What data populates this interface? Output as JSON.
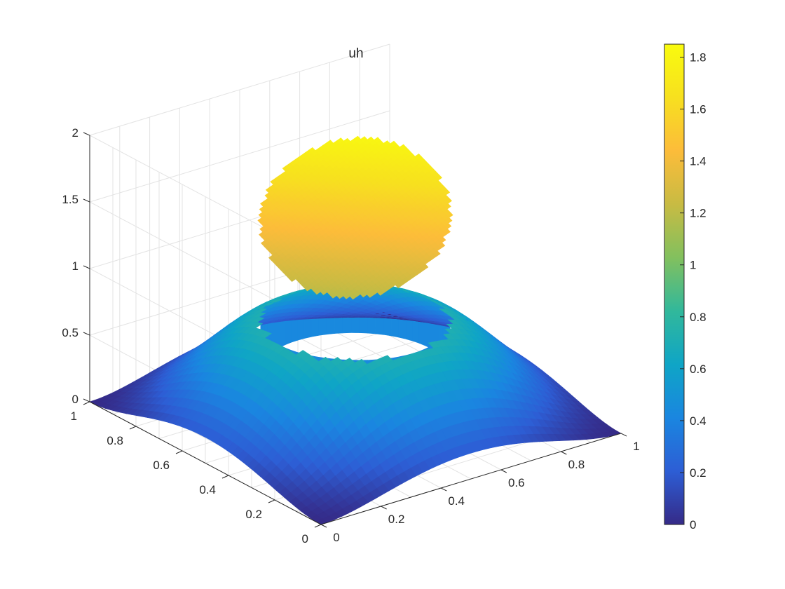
{
  "chart_data": {
    "type": "surface",
    "title": "uh",
    "xlabel": "",
    "ylabel": "",
    "zlabel": "",
    "xlim": [
      0,
      1
    ],
    "ylim": [
      0,
      1
    ],
    "zlim": [
      0,
      2
    ],
    "x_ticks": [
      "0",
      "0.2",
      "0.4",
      "0.6",
      "0.8",
      "1"
    ],
    "y_ticks": [
      "0",
      "0.2",
      "0.4",
      "0.6",
      "0.8",
      "1"
    ],
    "z_ticks": [
      "0",
      "0.5",
      "1",
      "1.5",
      "2"
    ],
    "grid": true,
    "view": "3d-azimuth-45",
    "colormap": "parula",
    "colorbar": {
      "position": "right",
      "clim": [
        0,
        1.85
      ],
      "ticks": [
        "0",
        "0.2",
        "0.4",
        "0.6",
        "0.8",
        "1",
        "1.2",
        "1.4",
        "1.6",
        "1.8"
      ],
      "colors": [
        "#352a87",
        "#2d5ed5",
        "#1a86e0",
        "#0fa5c6",
        "#31b89b",
        "#82c05e",
        "#c8bb43",
        "#fcbc3a",
        "#f7e01f",
        "#f9fb0e"
      ]
    },
    "surface": {
      "description_outer": "smooth bump from 0 at boundary rising toward ~0.8 at the hole rim",
      "hole_center": [
        0.5,
        0.5
      ],
      "hole_radius": 0.25,
      "outer_max": 0.82,
      "disk_min": 1.15,
      "disk_max": 1.85
    }
  }
}
